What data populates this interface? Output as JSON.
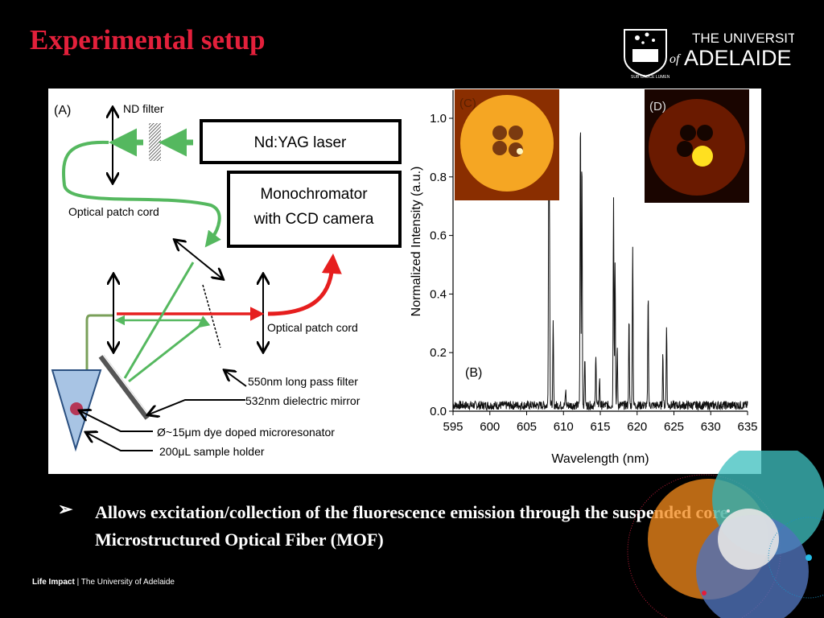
{
  "slide": {
    "title": "Experimental setup",
    "bullet": "Allows excitation/collection of the fluorescence emission through the suspended core Microstructured Optical Fiber (MOF)",
    "bullet_marker": "➢",
    "footer_bold": "Life Impact",
    "footer_sep": "|",
    "footer_rest": "The University of Adelaide",
    "logo_line1": "THE UNIVERSITY",
    "logo_of": "of",
    "logo_line2": "ADELAIDE",
    "logo_motto": "SUB CRUCE LUMEN",
    "title_color": "#e3203b"
  },
  "diagram": {
    "panel_label": "(A)",
    "nd_filter": "ND filter",
    "laser": "Nd:YAG laser",
    "mono_line1": "Monochromator",
    "mono_line2": "with CCD camera",
    "patch_cord_left": "Optical patch cord",
    "patch_cord_right": "Optical patch cord",
    "filter_label": "550nm long pass filter",
    "mirror_label": "532nm dielectric mirror",
    "resonator_label": "Ø~15μm dye doped microresonator",
    "holder_label": "200μL sample holder"
  },
  "insets": {
    "c_label": "(C)",
    "d_label": "(D)"
  },
  "chart_data": {
    "type": "line",
    "panel_label": "(B)",
    "xlabel": "Wavelength (nm)",
    "ylabel": "Normalized Intensity (a.u.)",
    "xlim": [
      595,
      635
    ],
    "ylim": [
      0,
      1.1
    ],
    "xticks": [
      "595",
      "600",
      "605",
      "610",
      "615",
      "620",
      "625",
      "630",
      "635"
    ],
    "yticks": [
      "0.0",
      "0.2",
      "0.4",
      "0.6",
      "0.8",
      "1.0"
    ],
    "baseline": 0.02,
    "peaks": [
      {
        "x": 608.0,
        "y": 0.75
      },
      {
        "x": 608.1,
        "y": 0.6
      },
      {
        "x": 608.6,
        "y": 0.28
      },
      {
        "x": 610.3,
        "y": 0.05
      },
      {
        "x": 612.3,
        "y": 1.0
      },
      {
        "x": 612.5,
        "y": 0.86
      },
      {
        "x": 612.9,
        "y": 0.17
      },
      {
        "x": 614.4,
        "y": 0.18
      },
      {
        "x": 614.9,
        "y": 0.09
      },
      {
        "x": 616.8,
        "y": 0.72
      },
      {
        "x": 617.0,
        "y": 0.5
      },
      {
        "x": 617.3,
        "y": 0.2
      },
      {
        "x": 618.9,
        "y": 0.29
      },
      {
        "x": 619.4,
        "y": 0.55
      },
      {
        "x": 621.5,
        "y": 0.38
      },
      {
        "x": 623.5,
        "y": 0.18
      },
      {
        "x": 624.0,
        "y": 0.28
      }
    ]
  }
}
